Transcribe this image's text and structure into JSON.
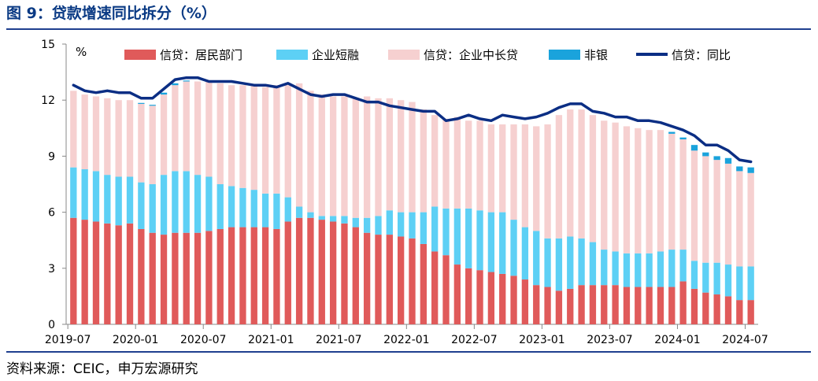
{
  "title": "图 9：贷款增速同比拆分（%）",
  "source": "资料来源：CEIC，申万宏源研究",
  "chart_data": {
    "type": "bar",
    "stacked": true,
    "unit_label": "%",
    "ylim": [
      0,
      15
    ],
    "y_ticks": [
      "0",
      "3",
      "6",
      "9",
      "12",
      "15"
    ],
    "y_tick_values": [
      0,
      3,
      6,
      9,
      12,
      15
    ],
    "x_tick_labels": [
      "2019-07",
      "2020-01",
      "2020-07",
      "2021-01",
      "2021-07",
      "2022-01",
      "2022-07",
      "2023-01",
      "2023-07",
      "2024-01",
      "2024-07"
    ],
    "x_tick_indices": [
      0,
      6,
      12,
      18,
      24,
      30,
      36,
      42,
      48,
      54,
      60
    ],
    "categories": [
      "2019-07",
      "2019-08",
      "2019-09",
      "2019-10",
      "2019-11",
      "2019-12",
      "2020-01",
      "2020-02",
      "2020-03",
      "2020-04",
      "2020-05",
      "2020-06",
      "2020-07",
      "2020-08",
      "2020-09",
      "2020-10",
      "2020-11",
      "2020-12",
      "2021-01",
      "2021-02",
      "2021-03",
      "2021-04",
      "2021-05",
      "2021-06",
      "2021-07",
      "2021-08",
      "2021-09",
      "2021-10",
      "2021-11",
      "2021-12",
      "2022-01",
      "2022-02",
      "2022-03",
      "2022-04",
      "2022-05",
      "2022-06",
      "2022-07",
      "2022-08",
      "2022-09",
      "2022-10",
      "2022-11",
      "2022-12",
      "2023-01",
      "2023-02",
      "2023-03",
      "2023-04",
      "2023-05",
      "2023-06",
      "2023-07",
      "2023-08",
      "2023-09",
      "2023-10",
      "2023-11",
      "2023-12",
      "2024-01",
      "2024-02",
      "2024-03",
      "2024-04",
      "2024-05",
      "2024-06",
      "2024-07"
    ],
    "series": [
      {
        "name": "信贷：居民部门",
        "kind": "bar",
        "color": "#e05a5a",
        "values": [
          5.7,
          5.6,
          5.5,
          5.4,
          5.3,
          5.4,
          5.1,
          4.9,
          4.8,
          4.9,
          4.9,
          4.9,
          5.0,
          5.1,
          5.2,
          5.2,
          5.2,
          5.2,
          5.1,
          5.5,
          5.7,
          5.7,
          5.6,
          5.5,
          5.4,
          5.2,
          4.9,
          4.8,
          4.8,
          4.7,
          4.6,
          4.3,
          3.9,
          3.7,
          3.2,
          3.0,
          2.9,
          2.8,
          2.7,
          2.6,
          2.4,
          2.1,
          2.0,
          1.8,
          1.9,
          2.1,
          2.1,
          2.1,
          2.1,
          2.0,
          2.0,
          2.0,
          2.0,
          2.0,
          2.3,
          1.9,
          1.7,
          1.6,
          1.5,
          1.3,
          1.3
        ]
      },
      {
        "name": "企业短融",
        "kind": "bar",
        "color": "#5dd0f5",
        "values": [
          2.7,
          2.7,
          2.7,
          2.6,
          2.6,
          2.5,
          2.5,
          2.6,
          3.2,
          3.3,
          3.3,
          3.1,
          2.9,
          2.4,
          2.2,
          2.1,
          2.0,
          1.8,
          1.9,
          1.3,
          0.6,
          0.3,
          0.2,
          0.3,
          0.4,
          0.5,
          0.8,
          1.0,
          1.3,
          1.3,
          1.4,
          1.7,
          2.4,
          2.5,
          3.0,
          3.2,
          3.2,
          3.2,
          3.3,
          3.0,
          2.8,
          2.9,
          2.6,
          2.8,
          2.8,
          2.5,
          2.3,
          1.9,
          1.8,
          1.8,
          1.8,
          1.8,
          1.9,
          2.0,
          1.7,
          1.5,
          1.6,
          1.7,
          1.7,
          1.8,
          1.8
        ]
      },
      {
        "name": "信贷：企业中长贷",
        "kind": "bar",
        "color": "#f6d0d0",
        "values": [
          4.1,
          4.0,
          4.0,
          4.1,
          4.1,
          4.1,
          4.2,
          4.2,
          4.3,
          4.6,
          4.8,
          5.0,
          5.1,
          5.4,
          5.4,
          5.5,
          5.6,
          5.7,
          5.8,
          6.0,
          6.6,
          6.5,
          6.5,
          6.4,
          6.4,
          6.4,
          6.5,
          6.3,
          6.0,
          6.0,
          5.9,
          5.5,
          4.9,
          4.8,
          4.9,
          4.7,
          4.8,
          4.7,
          4.7,
          5.1,
          5.5,
          5.6,
          6.1,
          6.6,
          6.8,
          6.9,
          6.8,
          6.9,
          6.9,
          6.8,
          6.7,
          6.6,
          6.5,
          6.2,
          5.9,
          5.9,
          5.7,
          5.5,
          5.4,
          5.1,
          5.0
        ]
      },
      {
        "name": "非银",
        "kind": "bar",
        "color": "#1aa3dc",
        "values": [
          0,
          0,
          0,
          0,
          0,
          0,
          0.05,
          0.05,
          0.1,
          0.1,
          0.05,
          0,
          0,
          0,
          0,
          0,
          0,
          0,
          0,
          0,
          0,
          0,
          0,
          0,
          0,
          0,
          0,
          0,
          0,
          0,
          0,
          0,
          0,
          0,
          0,
          0,
          0,
          0,
          0,
          0,
          0,
          0,
          0,
          0,
          0,
          0,
          0,
          0,
          0,
          0,
          0,
          0,
          0,
          0.1,
          0.1,
          0.3,
          0.2,
          0.2,
          0.3,
          0.25,
          0.3
        ]
      },
      {
        "name": "信贷：同比",
        "kind": "line",
        "color": "#0b2e84",
        "values": [
          12.8,
          12.5,
          12.4,
          12.5,
          12.4,
          12.4,
          12.1,
          12.1,
          12.6,
          13.1,
          13.2,
          13.2,
          13.0,
          13.0,
          13.0,
          12.9,
          12.8,
          12.8,
          12.7,
          12.9,
          12.6,
          12.3,
          12.2,
          12.3,
          12.3,
          12.1,
          11.9,
          11.9,
          11.7,
          11.6,
          11.5,
          11.4,
          11.4,
          10.9,
          11.0,
          11.2,
          11.0,
          10.9,
          11.2,
          11.1,
          11.0,
          11.1,
          11.3,
          11.6,
          11.8,
          11.8,
          11.4,
          11.3,
          11.1,
          11.1,
          10.9,
          10.9,
          10.8,
          10.6,
          10.4,
          10.1,
          9.6,
          9.6,
          9.3,
          8.8,
          8.7
        ]
      }
    ],
    "legend_position": "top",
    "grid": false
  }
}
